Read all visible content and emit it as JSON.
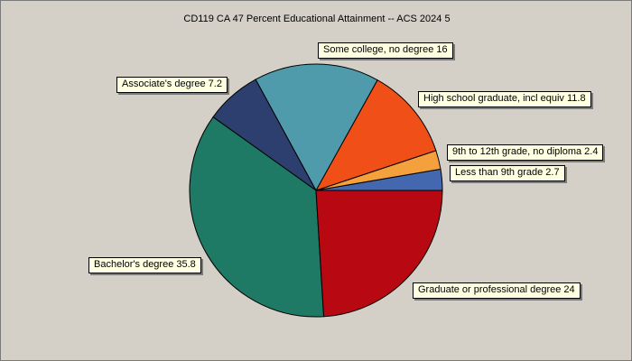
{
  "chart_data": {
    "type": "pie",
    "title": "CD119 CA 47 Percent Educational Attainment -- ACS 2024 5",
    "slices": [
      {
        "label": "Less than 9th grade",
        "value": 2.7,
        "color": "#4468b0"
      },
      {
        "label": "9th to 12th grade, no diploma",
        "value": 2.4,
        "color": "#f4a03c"
      },
      {
        "label": "High school graduate, incl equiv",
        "value": 11.8,
        "color": "#f05018"
      },
      {
        "label": "Some college, no degree",
        "value": 16,
        "color": "#4f9aab"
      },
      {
        "label": "Associate's degree",
        "value": 7.2,
        "color": "#2c3f6e"
      },
      {
        "label": "Bachelor's degree",
        "value": 35.8,
        "color": "#1e7a64"
      },
      {
        "label": "Graduate or professional degree",
        "value": 24,
        "color": "#b80812"
      }
    ]
  }
}
